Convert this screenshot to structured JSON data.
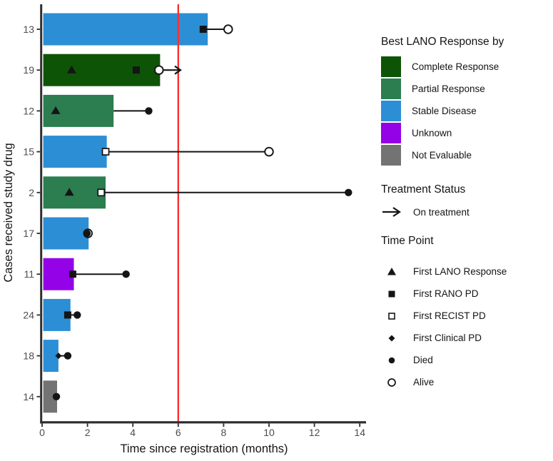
{
  "colors": {
    "background": "#ffffff",
    "axis": "#2e2e2e",
    "tick_text": "#4d4d4d",
    "marker": "#151515",
    "reference_line": "#fb2f2f",
    "responses": {
      "Complete Response": "#0e5406",
      "Partial Response": "#2c7d50",
      "Stable Disease": "#2c8ed5",
      "Unknown": "#9402e8",
      "Not Evaluable": "#737373"
    }
  },
  "chart_data": {
    "type": "bar",
    "orientation": "horizontal",
    "title": "",
    "xlabel": "Time since registration (months)",
    "ylabel": "Cases received study drug",
    "xlim": [
      0,
      14
    ],
    "xticks": [
      "0",
      "2",
      "4",
      "6",
      "8",
      "10",
      "12",
      "14"
    ],
    "grid": "off",
    "reference_line": {
      "x": 6,
      "color": "#fb2f2f"
    },
    "categories": [
      "13",
      "19",
      "12",
      "15",
      "2",
      "17",
      "11",
      "24",
      "18",
      "14"
    ],
    "cases": [
      {
        "id": "13",
        "response": "Stable Disease",
        "bar_end": 7.3,
        "line": [
          7.1,
          8.2
        ],
        "markers": [
          {
            "type": "first_rano_pd",
            "x": 7.1
          },
          {
            "type": "alive",
            "x": 8.2
          }
        ]
      },
      {
        "id": "19",
        "response": "Complete Response",
        "bar_end": 5.2,
        "arrow": [
          5.15,
          6.1
        ],
        "markers": [
          {
            "type": "first_lano_response",
            "x": 1.3
          },
          {
            "type": "first_rano_pd",
            "x": 4.15
          },
          {
            "type": "alive",
            "x": 5.15
          }
        ]
      },
      {
        "id": "12",
        "response": "Partial Response",
        "bar_end": 3.15,
        "line": [
          3.15,
          4.7
        ],
        "markers": [
          {
            "type": "first_lano_response",
            "x": 0.6
          },
          {
            "type": "died",
            "x": 4.7
          }
        ]
      },
      {
        "id": "15",
        "response": "Stable Disease",
        "bar_end": 2.85,
        "line": [
          2.8,
          10.0
        ],
        "markers": [
          {
            "type": "first_recist_pd",
            "x": 2.8
          },
          {
            "type": "alive",
            "x": 10.0
          }
        ]
      },
      {
        "id": "2",
        "response": "Partial Response",
        "bar_end": 2.8,
        "line": [
          2.6,
          13.5
        ],
        "markers": [
          {
            "type": "first_lano_response",
            "x": 1.2
          },
          {
            "type": "first_recist_pd",
            "x": 2.6
          },
          {
            "type": "died",
            "x": 13.5
          }
        ]
      },
      {
        "id": "17",
        "response": "Stable Disease",
        "bar_end": 2.05,
        "markers": [
          {
            "type": "alive",
            "x": 2.02
          },
          {
            "type": "died",
            "x": 1.98
          }
        ]
      },
      {
        "id": "11",
        "response": "Unknown",
        "bar_end": 1.4,
        "line": [
          1.35,
          3.7
        ],
        "markers": [
          {
            "type": "first_rano_pd",
            "x": 1.35
          },
          {
            "type": "died",
            "x": 3.7
          }
        ]
      },
      {
        "id": "24",
        "response": "Stable Disease",
        "bar_end": 1.25,
        "line": [
          1.13,
          1.55
        ],
        "markers": [
          {
            "type": "first_rano_pd",
            "x": 1.13
          },
          {
            "type": "died",
            "x": 1.55
          }
        ]
      },
      {
        "id": "18",
        "response": "Stable Disease",
        "bar_end": 0.72,
        "line": [
          0.72,
          1.13
        ],
        "markers": [
          {
            "type": "first_clinical_pd",
            "x": 0.72
          },
          {
            "type": "died",
            "x": 1.13
          }
        ]
      },
      {
        "id": "14",
        "response": "Not Evaluable",
        "bar_end": 0.66,
        "markers": [
          {
            "type": "died",
            "x": 0.63
          }
        ]
      }
    ]
  },
  "legend": {
    "response_title": "Best LANO Response by",
    "responses": [
      {
        "label": "Complete Response",
        "color": "#0e5406"
      },
      {
        "label": "Partial Response",
        "color": "#2c7d50"
      },
      {
        "label": "Stable Disease",
        "color": "#2c8ed5"
      },
      {
        "label": "Unknown",
        "color": "#9402e8"
      },
      {
        "label": "Not Evaluable",
        "color": "#737373"
      }
    ],
    "treatment_title": "Treatment Status",
    "treatment_items": [
      {
        "symbol": "arrow-right",
        "label": "On treatment"
      }
    ],
    "timepoint_title": "Time Point",
    "timepoints": [
      {
        "symbol": "triangle-filled",
        "label": "First LANO Response"
      },
      {
        "symbol": "square-filled",
        "label": "First RANO PD"
      },
      {
        "symbol": "square-open",
        "label": "First RECIST PD"
      },
      {
        "symbol": "diamond-filled",
        "label": "First Clinical PD"
      },
      {
        "symbol": "circle-filled",
        "label": "Died"
      },
      {
        "symbol": "circle-open",
        "label": "Alive"
      }
    ]
  }
}
